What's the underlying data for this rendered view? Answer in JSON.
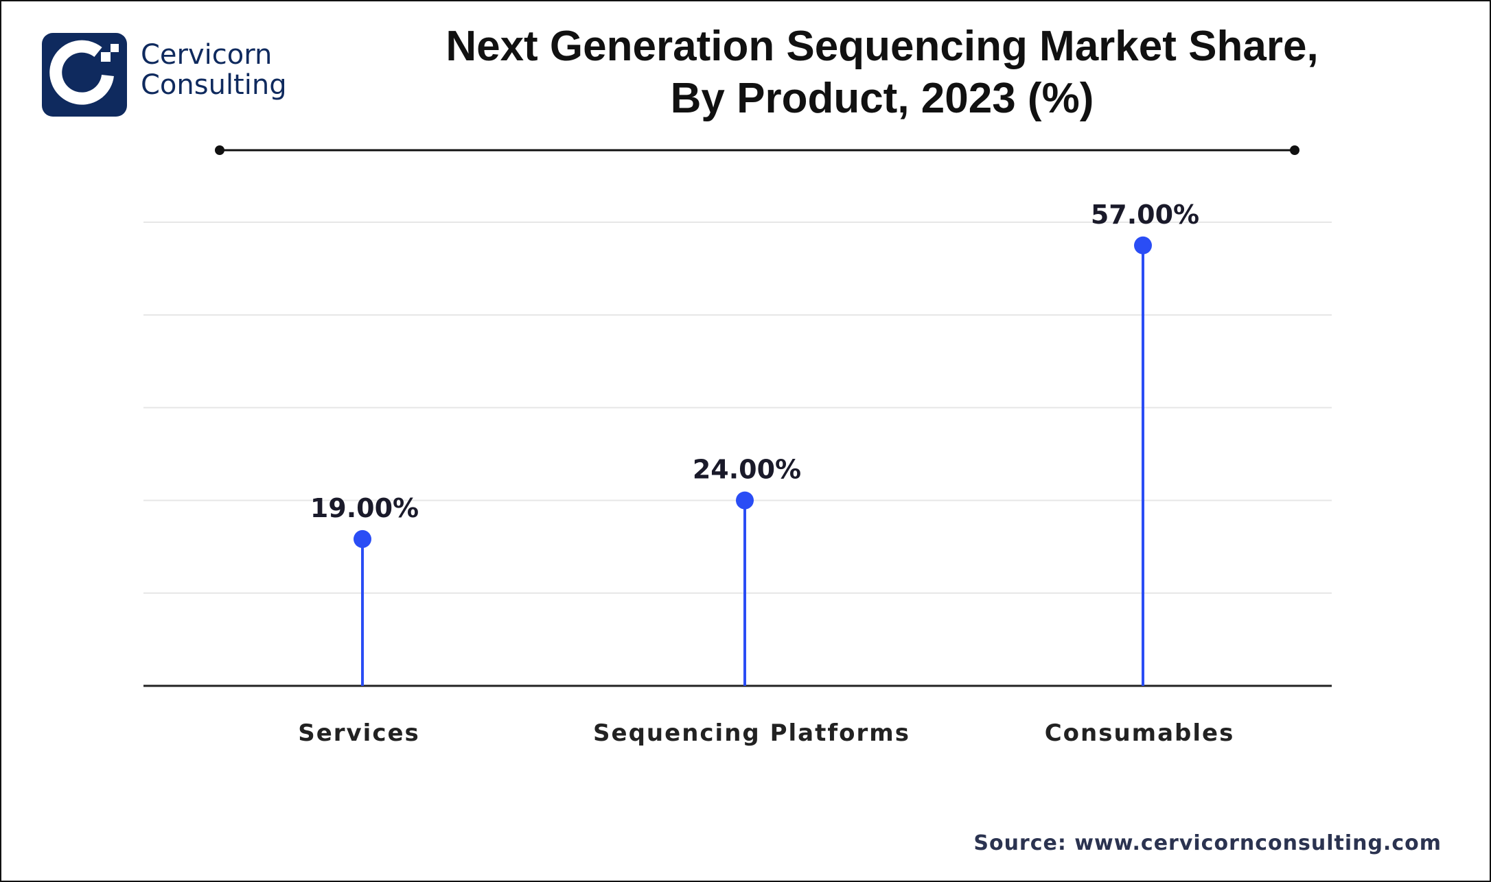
{
  "brand": {
    "line1": "Cervicorn",
    "line2": "Consulting",
    "color": "#0f2a5e"
  },
  "source": "Source: www.cervicornconsulting.com",
  "chart_data": {
    "type": "lollipop",
    "title_line1": "Next Generation Sequencing Market Share,",
    "title_line2": "By Product, 2023 (%)",
    "categories": [
      "Services",
      "Sequencing Platforms",
      "Consumables"
    ],
    "values": [
      19,
      24,
      57
    ],
    "data_labels": [
      "19.00%",
      "24.00%",
      "57.00%"
    ],
    "ylim": [
      0,
      60
    ],
    "grid": true,
    "color": "#2a4df5"
  }
}
